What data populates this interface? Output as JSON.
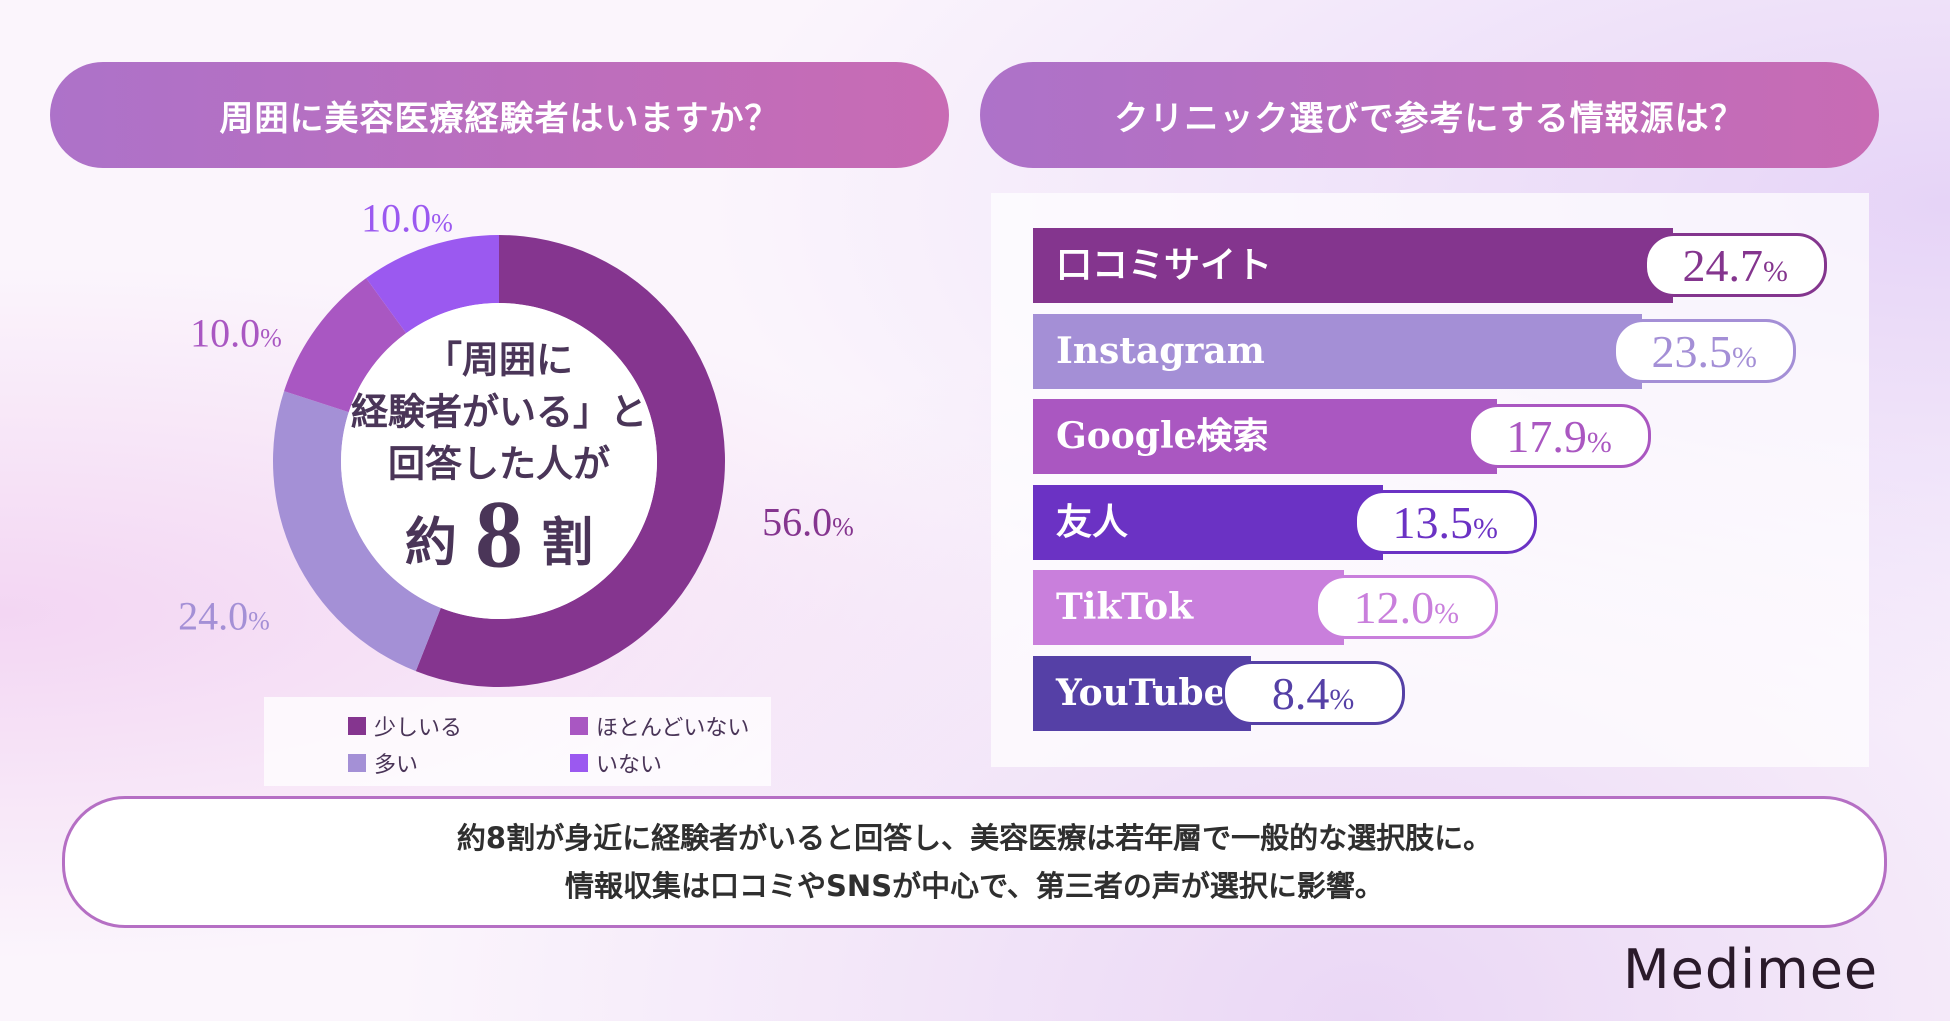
{
  "left_title": "周囲に美容医療経験者はいますか？",
  "right_title": "クリニック選びで参考にする情報源は？",
  "center_text": {
    "line1": "「周囲に",
    "line2": "経験者がいる」と",
    "line3": "回答した人が",
    "pre": "約",
    "number": "8",
    "post": "割"
  },
  "chart_data": [
    {
      "type": "pie",
      "donut": true,
      "title": "周囲に美容医療経験者はいますか？",
      "unit": "%",
      "slices": [
        {
          "label": "少しいる",
          "value": 56.0,
          "display": "56.0",
          "color": "#85358f"
        },
        {
          "label": "多い",
          "value": 24.0,
          "display": "24.0",
          "color": "#a490d6"
        },
        {
          "label": "ほとんどいない",
          "value": 10.0,
          "display": "10.0",
          "color": "#a957c2"
        },
        {
          "label": "いない",
          "value": 10.0,
          "display": "10.0",
          "color": "#9b59f0"
        }
      ],
      "legend": "bottom"
    },
    {
      "type": "bar",
      "orientation": "horizontal",
      "title": "クリニック選びで参考にする情報源は？",
      "unit": "%",
      "categories": [
        "口コミサイト",
        "Instagram",
        "Google検索",
        "友人",
        "TikTok",
        "YouTube"
      ],
      "values": [
        24.7,
        23.5,
        17.9,
        13.5,
        12.0,
        8.4
      ],
      "display": [
        "24.7",
        "23.5",
        "17.9",
        "13.5",
        "12.0",
        "8.4"
      ],
      "colors": [
        "#84358e",
        "#a48fd6",
        "#aa57c1",
        "#6b32c4",
        "#c97fdc",
        "#5540a6"
      ]
    }
  ],
  "summary": {
    "line1": "約8割が身近に経験者がいると回答し、美容医療は若年層で一般的な選択肢に。",
    "line2": "情報収集は口コミやSNSが中心で、第三者の声が選択に影響。"
  },
  "logo": "Medimee"
}
